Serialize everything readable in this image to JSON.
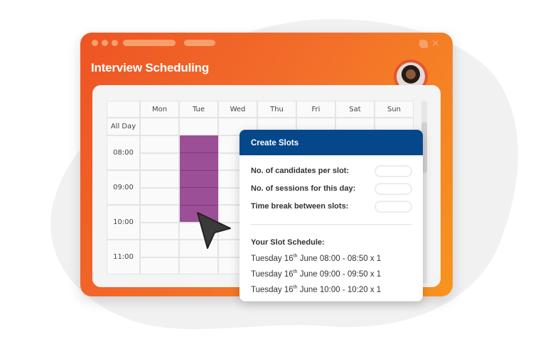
{
  "window": {
    "title": "Interview Scheduling",
    "controls": {
      "minimize_icon": "square-icon",
      "close": "✕"
    }
  },
  "calendar": {
    "days": [
      "Mon",
      "Tue",
      "Wed",
      "Thu",
      "Fri",
      "Sat",
      "Sun"
    ],
    "all_day": "All Day",
    "times": [
      "08:00",
      "09:00",
      "10:00",
      "11:00"
    ],
    "selected": {
      "day": "Tue",
      "from": "08:00",
      "to": "10:30"
    },
    "selected_color": "#9b4f96"
  },
  "popup": {
    "title": "Create Slots",
    "fields": [
      {
        "label": "No. of candidates per slot:",
        "value": ""
      },
      {
        "label": "No. of sessions for this day:",
        "value": ""
      },
      {
        "label": "Time break between slots:",
        "value": ""
      }
    ],
    "schedule_title": "Your Slot Schedule:",
    "schedule": [
      {
        "day": "Tuesday 16",
        "sup": "th",
        "rest": " June 08:00 - 08:50 x 1"
      },
      {
        "day": "Tuesday 16",
        "sup": "th",
        "rest": " June 09:00 - 09:50 x 1"
      },
      {
        "day": "Tuesday 16",
        "sup": "th",
        "rest": " June 10:00 - 10:20 x 1"
      }
    ],
    "header_color": "#04478a"
  },
  "colors": {
    "accent": "#f3702a"
  }
}
